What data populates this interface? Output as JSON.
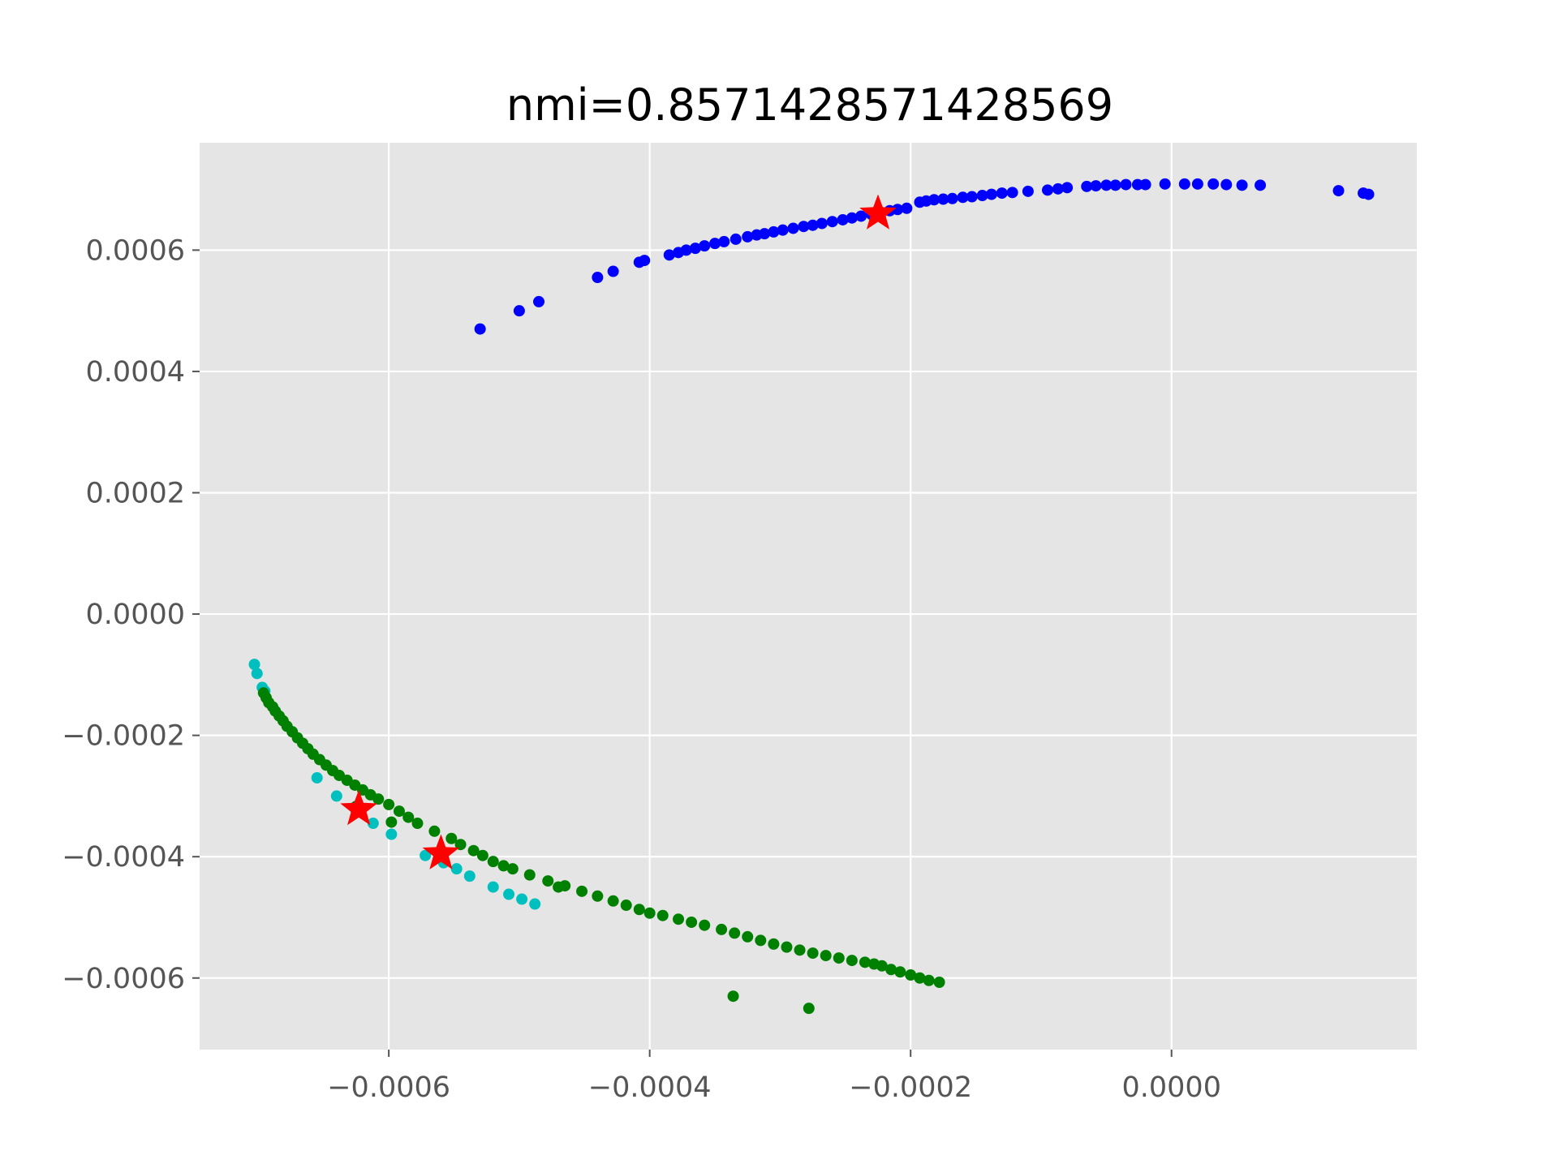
{
  "chart_data": {
    "type": "scatter",
    "title": "nmi=0.8571428571428569",
    "xlabel": "",
    "ylabel": "",
    "xlim": [
      -0.000745,
      0.000188
    ],
    "ylim": [
      -0.000718,
      0.000777
    ],
    "grid": true,
    "style": "ggplot",
    "x_ticks": [
      {
        "value": -0.0006,
        "label": "−0.0006"
      },
      {
        "value": -0.0004,
        "label": "−0.0004"
      },
      {
        "value": -0.0002,
        "label": "−0.0002"
      },
      {
        "value": 0.0,
        "label": "0.0000"
      }
    ],
    "y_ticks": [
      {
        "value": -0.0006,
        "label": "−0.0006"
      },
      {
        "value": -0.0004,
        "label": "−0.0004"
      },
      {
        "value": -0.0002,
        "label": "−0.0002"
      },
      {
        "value": 0.0,
        "label": "0.0000"
      },
      {
        "value": 0.0002,
        "label": "0.0002"
      },
      {
        "value": 0.0004,
        "label": "0.0004"
      },
      {
        "value": 0.0006,
        "label": "0.0006"
      }
    ],
    "colors": {
      "background": "#e5e5e5",
      "grid": "#ffffff",
      "blue": "#0000ff",
      "green": "#008000",
      "cyan": "#00bfbf",
      "centroid": "#ff0000"
    },
    "series": [
      {
        "color": "blue",
        "marker": "dot",
        "points": [
          [
            -0.00053,
            0.00047
          ],
          [
            -0.0005,
            0.0005
          ],
          [
            -0.000485,
            0.000515
          ],
          [
            -0.00044,
            0.000555
          ],
          [
            -0.000428,
            0.000565
          ],
          [
            -0.000408,
            0.00058
          ],
          [
            -0.000404,
            0.000583
          ],
          [
            -0.000385,
            0.000592
          ],
          [
            -0.000378,
            0.000596
          ],
          [
            -0.000372,
            0.0006
          ],
          [
            -0.000365,
            0.000603
          ],
          [
            -0.000358,
            0.000607
          ],
          [
            -0.00035,
            0.000611
          ],
          [
            -0.000343,
            0.000614
          ],
          [
            -0.000334,
            0.000618
          ],
          [
            -0.000325,
            0.000622
          ],
          [
            -0.000318,
            0.000625
          ],
          [
            -0.000312,
            0.000627
          ],
          [
            -0.000305,
            0.00063
          ],
          [
            -0.000298,
            0.000633
          ],
          [
            -0.00029,
            0.000636
          ],
          [
            -0.000282,
            0.000639
          ],
          [
            -0.000275,
            0.000641
          ],
          [
            -0.000268,
            0.000644
          ],
          [
            -0.00026,
            0.000647
          ],
          [
            -0.000252,
            0.00065
          ],
          [
            -0.000245,
            0.000653
          ],
          [
            -0.000238,
            0.000656
          ],
          [
            -0.00023,
            0.000659
          ],
          [
            -0.000224,
            0.000662
          ],
          [
            -0.000216,
            0.000665
          ],
          [
            -0.00021,
            0.000667
          ],
          [
            -0.000203,
            0.000669
          ],
          [
            -0.000193,
            0.000679
          ],
          [
            -0.000188,
            0.000681
          ],
          [
            -0.000182,
            0.000683
          ],
          [
            -0.000175,
            0.000684
          ],
          [
            -0.000168,
            0.000685
          ],
          [
            -0.00016,
            0.000687
          ],
          [
            -0.000153,
            0.000688
          ],
          [
            -0.000145,
            0.00069
          ],
          [
            -0.000138,
            0.000692
          ],
          [
            -0.00013,
            0.000694
          ],
          [
            -0.000122,
            0.000695
          ],
          [
            -0.00011,
            0.000697
          ],
          [
            -9.5e-05,
            0.000699
          ],
          [
            -8.7e-05,
            0.000701
          ],
          [
            -8e-05,
            0.000703
          ],
          [
            -6.5e-05,
            0.000705
          ],
          [
            -5.8e-05,
            0.000706
          ],
          [
            -5e-05,
            0.000707
          ],
          [
            -4.3e-05,
            0.000707
          ],
          [
            -3.5e-05,
            0.000708
          ],
          [
            -2.6e-05,
            0.000708
          ],
          [
            -2e-05,
            0.000708
          ],
          [
            -5e-06,
            0.000709
          ],
          [
            1e-05,
            0.000709
          ],
          [
            2e-05,
            0.000709
          ],
          [
            3.2e-05,
            0.000709
          ],
          [
            4.2e-05,
            0.000708
          ],
          [
            5.4e-05,
            0.000707
          ],
          [
            6.8e-05,
            0.000707
          ],
          [
            0.000128,
            0.000698
          ],
          [
            0.000147,
            0.000694
          ],
          [
            0.000151,
            0.000692
          ]
        ]
      },
      {
        "color": "cyan",
        "marker": "dot",
        "points": [
          [
            -0.000703,
            -8.3e-05
          ],
          [
            -0.000701,
            -9.8e-05
          ],
          [
            -0.000697,
            -0.000121
          ],
          [
            -0.000695,
            -0.000127
          ],
          [
            -0.000655,
            -0.00027
          ],
          [
            -0.00064,
            -0.0003
          ],
          [
            -0.000625,
            -0.000325
          ],
          [
            -0.000612,
            -0.000345
          ],
          [
            -0.000598,
            -0.000363
          ],
          [
            -0.000572,
            -0.000398
          ],
          [
            -0.000558,
            -0.00041
          ],
          [
            -0.000548,
            -0.00042
          ],
          [
            -0.000538,
            -0.000432
          ],
          [
            -0.00052,
            -0.00045
          ],
          [
            -0.000508,
            -0.000462
          ],
          [
            -0.000498,
            -0.00047
          ],
          [
            -0.000488,
            -0.000478
          ]
        ]
      },
      {
        "color": "green",
        "marker": "dot",
        "points": [
          [
            -0.000696,
            -0.00013
          ],
          [
            -0.000694,
            -0.000138
          ],
          [
            -0.000692,
            -0.000146
          ],
          [
            -0.000689,
            -0.000153
          ],
          [
            -0.000687,
            -0.00016
          ],
          [
            -0.000684,
            -0.000168
          ],
          [
            -0.000681,
            -0.000176
          ],
          [
            -0.000678,
            -0.000185
          ],
          [
            -0.000674,
            -0.000194
          ],
          [
            -0.00067,
            -0.000204
          ],
          [
            -0.000666,
            -0.000213
          ],
          [
            -0.000662,
            -0.000222
          ],
          [
            -0.000658,
            -0.000231
          ],
          [
            -0.000653,
            -0.00024
          ],
          [
            -0.000648,
            -0.000249
          ],
          [
            -0.000643,
            -0.000258
          ],
          [
            -0.000638,
            -0.000266
          ],
          [
            -0.000632,
            -0.000274
          ],
          [
            -0.000626,
            -0.000282
          ],
          [
            -0.00062,
            -0.00029
          ],
          [
            -0.000614,
            -0.000298
          ],
          [
            -0.000608,
            -0.000305
          ],
          [
            -0.0006,
            -0.000314
          ],
          [
            -0.000592,
            -0.000325
          ],
          [
            -0.000585,
            -0.000335
          ],
          [
            -0.000578,
            -0.000345
          ],
          [
            -0.000565,
            -0.000358
          ],
          [
            -0.000552,
            -0.00037
          ],
          [
            -0.000545,
            -0.00038
          ],
          [
            -0.000535,
            -0.00039
          ],
          [
            -0.000528,
            -0.000398
          ],
          [
            -0.00052,
            -0.000408
          ],
          [
            -0.000512,
            -0.000415
          ],
          [
            -0.000505,
            -0.00042
          ],
          [
            -0.000492,
            -0.00043
          ],
          [
            -0.000478,
            -0.00044
          ],
          [
            -0.000465,
            -0.000448
          ],
          [
            -0.000452,
            -0.000457
          ],
          [
            -0.00044,
            -0.000465
          ],
          [
            -0.000428,
            -0.000473
          ],
          [
            -0.000418,
            -0.00048
          ],
          [
            -0.000408,
            -0.000487
          ],
          [
            -0.0004,
            -0.000493
          ],
          [
            -0.00039,
            -0.000497
          ],
          [
            -0.000378,
            -0.000503
          ],
          [
            -0.000368,
            -0.000508
          ],
          [
            -0.000358,
            -0.000513
          ],
          [
            -0.000345,
            -0.00052
          ],
          [
            -0.000335,
            -0.000526
          ],
          [
            -0.000325,
            -0.000532
          ],
          [
            -0.000315,
            -0.000538
          ],
          [
            -0.000305,
            -0.000544
          ],
          [
            -0.000295,
            -0.000549
          ],
          [
            -0.000285,
            -0.000554
          ],
          [
            -0.000275,
            -0.000559
          ],
          [
            -0.000265,
            -0.000563
          ],
          [
            -0.000255,
            -0.000567
          ],
          [
            -0.000245,
            -0.000571
          ],
          [
            -0.000235,
            -0.000574
          ],
          [
            -0.000228,
            -0.000577
          ],
          [
            -0.000222,
            -0.00058
          ],
          [
            -0.000215,
            -0.000586
          ],
          [
            -0.000208,
            -0.00059
          ],
          [
            -0.0002,
            -0.000595
          ],
          [
            -0.000193,
            -0.0006
          ],
          [
            -0.000186,
            -0.000604
          ],
          [
            -0.000178,
            -0.000607
          ],
          [
            -0.000336,
            -0.00063
          ],
          [
            -0.000278,
            -0.00065
          ],
          [
            -0.000625,
            -0.000317
          ],
          [
            -0.000598,
            -0.000343
          ],
          [
            -0.00047,
            -0.00045
          ]
        ]
      }
    ],
    "centroids": {
      "color": "centroid",
      "marker": "star",
      "points": [
        [
          -0.000225,
          0.00066
        ],
        [
          -0.000623,
          -0.000322
        ],
        [
          -0.00056,
          -0.000395
        ]
      ]
    }
  }
}
